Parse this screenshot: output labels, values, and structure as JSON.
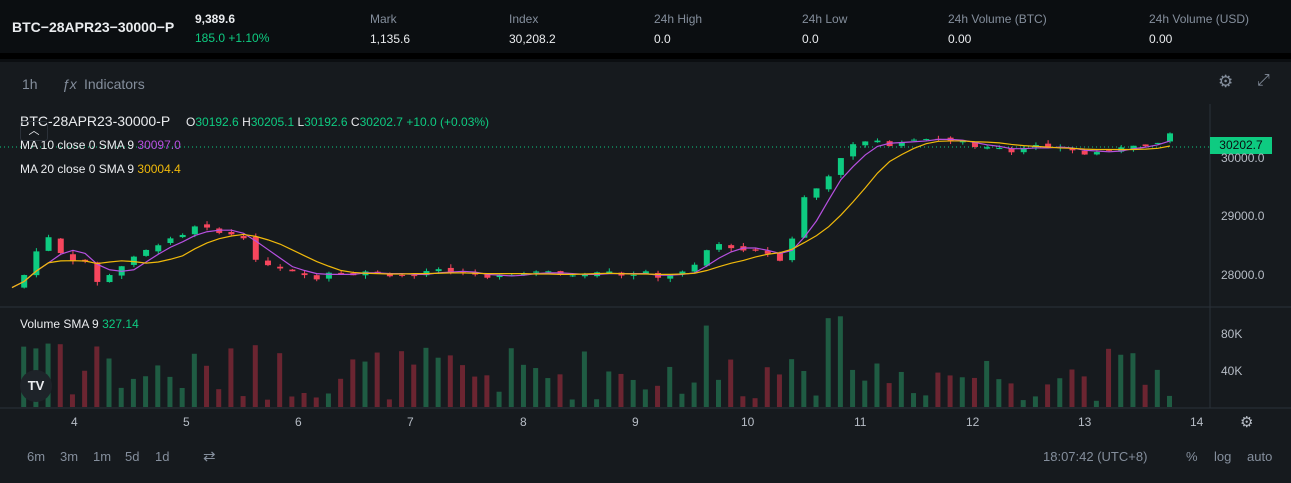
{
  "header": {
    "symbol": "BTC−28APR23−30000−P",
    "price": "9,389.6",
    "change": "185.0 +1.10%",
    "stats": [
      {
        "label": "Mark",
        "value": "1,135.6"
      },
      {
        "label": "Index",
        "value": "30,208.2"
      },
      {
        "label": "24h High",
        "value": "0.0"
      },
      {
        "label": "24h Low",
        "value": "0.0"
      },
      {
        "label": "24h Volume (BTC)",
        "value": "0.00"
      },
      {
        "label": "24h Volume (USD)",
        "value": "0.00"
      }
    ]
  },
  "toolbar": {
    "interval": "1h",
    "indicators_label": "Indicators"
  },
  "legend": {
    "symbol": "BTC-28APR23-30000-P",
    "o_label": "O",
    "o": "30192.6",
    "h_label": "H",
    "h": "30205.1",
    "l_label": "L",
    "l": "30192.6",
    "c_label": "C",
    "c": "30202.7",
    "change": "+10.0 (+0.03%)",
    "ma10_label": "MA 10 close 0 SMA 9",
    "ma10": "30097.0",
    "ma20_label": "MA 20 close 0 SMA 9",
    "ma20": "30004.4",
    "vol_label": "Volume SMA 9",
    "vol": "327.14"
  },
  "price_axis": {
    "current": "30202.7",
    "ticks": [
      "30000.0",
      "29000.0",
      "28000.0"
    ],
    "volume_ticks": [
      "80K",
      "40K"
    ]
  },
  "time_axis": [
    "4",
    "5",
    "6",
    "7",
    "8",
    "9",
    "10",
    "11",
    "12",
    "13",
    "14"
  ],
  "bottombar": {
    "ranges": [
      "6m",
      "3m",
      "1m",
      "5d",
      "1d"
    ],
    "time": "18:07:42 (UTC+8)",
    "percent": "%",
    "log": "log",
    "auto": "auto"
  },
  "colors": {
    "up": "#0ecb81",
    "down": "#f6465d",
    "ma10": "#b650e0",
    "ma20": "#f0b90b"
  },
  "chart_data": {
    "type": "candlestick",
    "ylim": [
      27500,
      30400
    ],
    "price_path": [
      [
        0,
        27700
      ],
      [
        1,
        27900
      ],
      [
        2,
        28300
      ],
      [
        3,
        28500
      ],
      [
        4,
        28250
      ],
      [
        5,
        28150
      ],
      [
        6,
        28100
      ],
      [
        7,
        27800
      ],
      [
        8,
        27900
      ],
      [
        9,
        28050
      ],
      [
        10,
        28200
      ],
      [
        11,
        28300
      ],
      [
        12,
        28400
      ],
      [
        13,
        28500
      ],
      [
        14,
        28550
      ],
      [
        15,
        28700
      ],
      [
        16,
        28650
      ],
      [
        17,
        28600
      ],
      [
        18,
        28550
      ],
      [
        19,
        28500
      ],
      [
        20,
        28150
      ],
      [
        21,
        28050
      ],
      [
        22,
        28000
      ],
      [
        23,
        27950
      ],
      [
        24,
        27900
      ],
      [
        25,
        27850
      ],
      [
        26,
        27950
      ],
      [
        27,
        27950
      ],
      [
        28,
        27900
      ],
      [
        29,
        27950
      ],
      [
        30,
        27950
      ],
      [
        31,
        27900
      ],
      [
        32,
        27900
      ],
      [
        33,
        27900
      ],
      [
        34,
        27950
      ],
      [
        35,
        28000
      ],
      [
        36,
        27950
      ],
      [
        37,
        27950
      ],
      [
        38,
        27900
      ],
      [
        39,
        27850
      ],
      [
        40,
        27900
      ],
      [
        41,
        27900
      ],
      [
        42,
        27950
      ],
      [
        43,
        27950
      ],
      [
        44,
        27950
      ],
      [
        45,
        27900
      ],
      [
        46,
        27900
      ],
      [
        47,
        27900
      ],
      [
        48,
        27950
      ],
      [
        49,
        27950
      ],
      [
        50,
        27900
      ],
      [
        51,
        27900
      ],
      [
        52,
        27950
      ],
      [
        53,
        27850
      ],
      [
        54,
        27900
      ],
      [
        55,
        27950
      ],
      [
        56,
        28050
      ],
      [
        57,
        28300
      ],
      [
        58,
        28400
      ],
      [
        59,
        28350
      ],
      [
        60,
        28300
      ],
      [
        61,
        28300
      ],
      [
        62,
        28250
      ],
      [
        63,
        28150
      ],
      [
        64,
        28500
      ],
      [
        65,
        29150
      ],
      [
        66,
        29300
      ],
      [
        67,
        29500
      ],
      [
        68,
        29800
      ],
      [
        69,
        30000
      ],
      [
        70,
        30050
      ],
      [
        71,
        30050
      ],
      [
        72,
        30000
      ],
      [
        73,
        30050
      ],
      [
        74,
        30100
      ],
      [
        75,
        30100
      ],
      [
        76,
        30100
      ],
      [
        77,
        30050
      ],
      [
        78,
        30050
      ],
      [
        79,
        29950
      ],
      [
        80,
        29950
      ],
      [
        81,
        29950
      ],
      [
        82,
        29900
      ],
      [
        83,
        29950
      ],
      [
        84,
        30000
      ],
      [
        85,
        29950
      ],
      [
        86,
        29950
      ],
      [
        87,
        29900
      ],
      [
        88,
        29850
      ],
      [
        89,
        29900
      ],
      [
        90,
        29900
      ],
      [
        91,
        29950
      ],
      [
        92,
        30000
      ],
      [
        93,
        30000
      ],
      [
        94,
        30050
      ],
      [
        95,
        30200
      ]
    ],
    "note_series": [
      "MA 10",
      "MA 20",
      "Volume"
    ]
  }
}
